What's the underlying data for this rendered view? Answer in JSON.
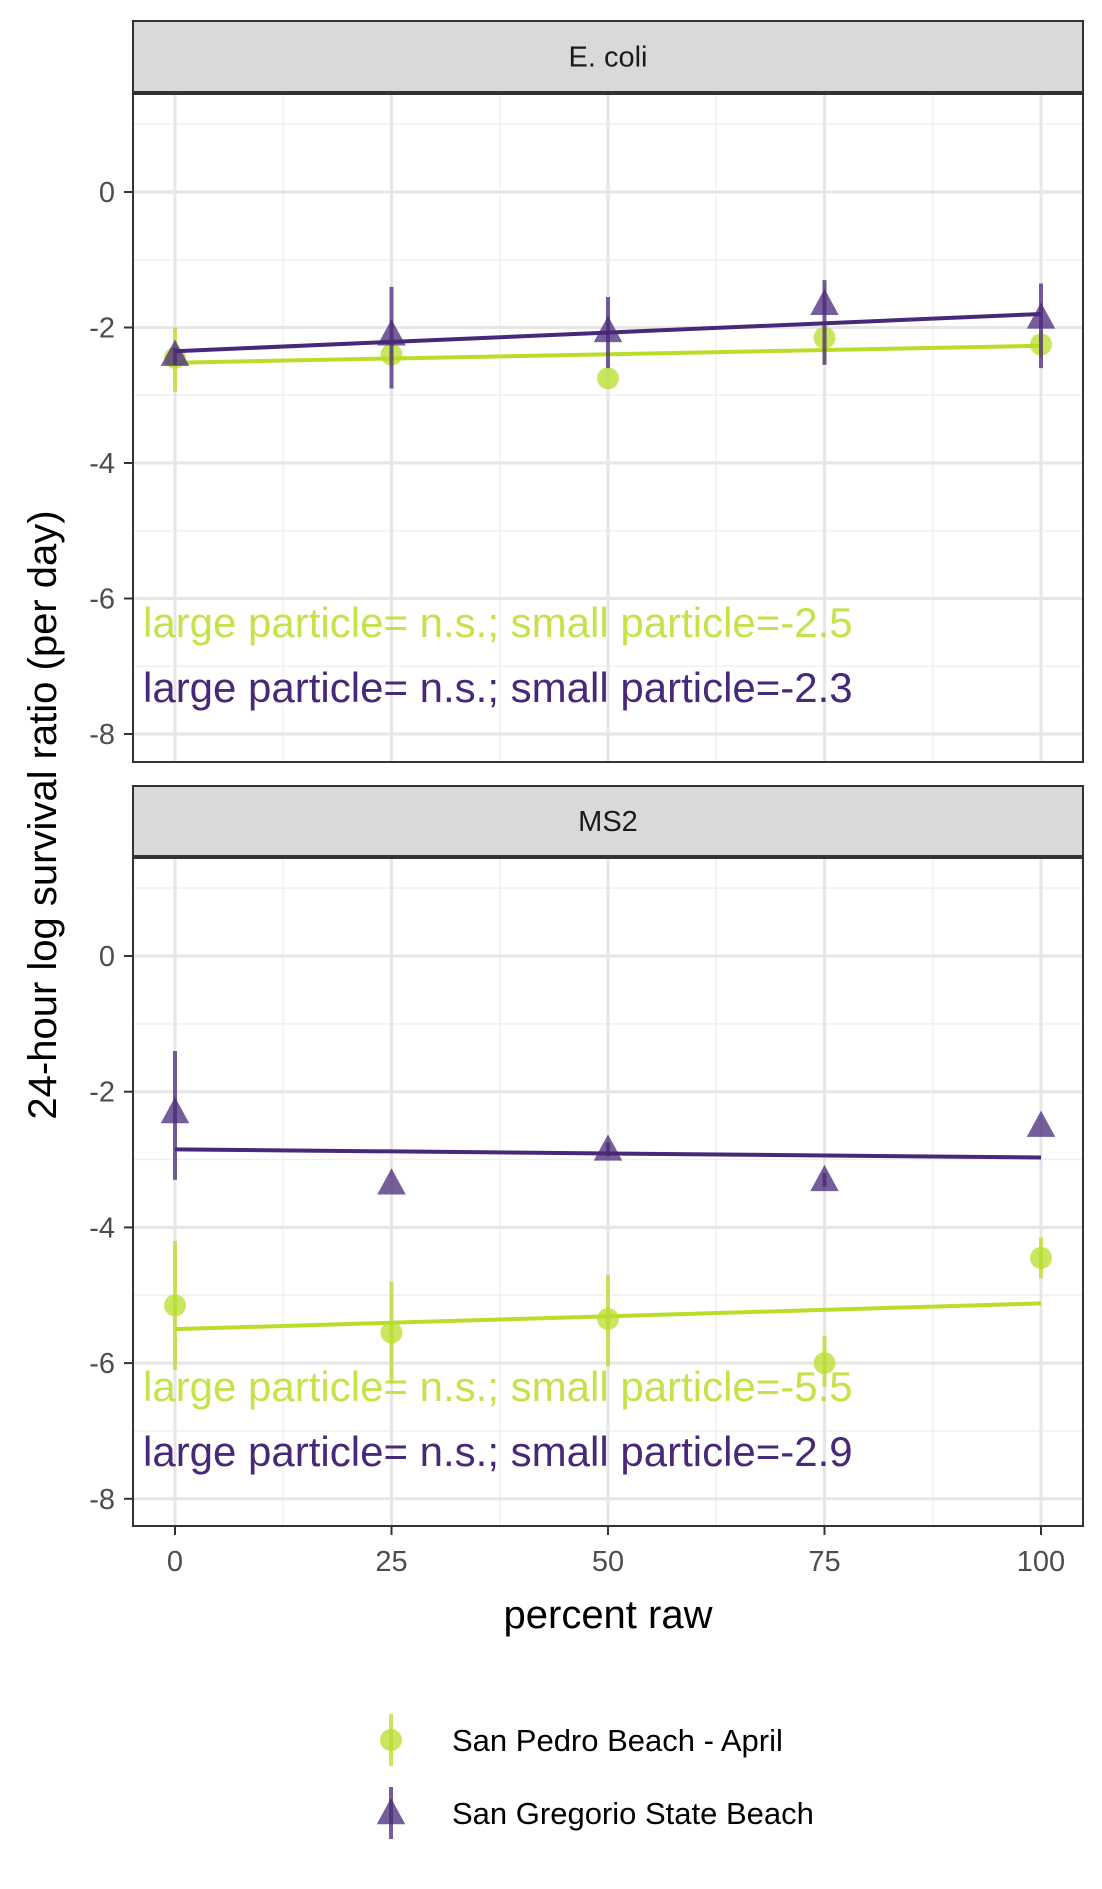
{
  "chart_data": {
    "type": "scatter",
    "xlabel": "percent raw",
    "ylabel": "24-hour log survival ratio (per day)",
    "x_ticks": [
      "0",
      "25",
      "50",
      "75",
      "100"
    ],
    "y_ticks": [
      "0",
      "-2",
      "-4",
      "-6",
      "-8"
    ],
    "xlim": [
      -5,
      105
    ],
    "ylim": [
      -8.5,
      1.4
    ],
    "grid": true,
    "legend_position": "bottom",
    "colors": {
      "San Pedro Beach - April": "#B8DE29",
      "San Gregorio State Beach": "#482878"
    },
    "legend": [
      {
        "name": "San Pedro Beach - April",
        "marker": "circle",
        "color": "#B8DE29"
      },
      {
        "name": "San Gregorio State Beach",
        "marker": "triangle",
        "color": "#482878"
      }
    ],
    "panels": [
      {
        "strip": "E. coli",
        "series": [
          {
            "name": "San Pedro Beach - April",
            "color": "#B8DE29",
            "marker": "circle",
            "x": [
              0,
              25,
              50,
              75,
              100
            ],
            "y": [
              -2.45,
              -2.4,
              -2.75,
              -2.15,
              -2.25
            ],
            "err_low": [
              -2.95,
              -2.5,
              -2.75,
              -2.55,
              -2.45
            ],
            "err_high": [
              -2.0,
              -2.3,
              -2.75,
              -1.9,
              -2.05
            ],
            "fit": {
              "x": [
                0,
                100
              ],
              "y": [
                -2.52,
                -2.27
              ]
            },
            "annotation": "large particle= n.s.; small particle=-2.5"
          },
          {
            "name": "San Gregorio State Beach",
            "color": "#482878",
            "marker": "triangle",
            "x": [
              0,
              25,
              50,
              75,
              100
            ],
            "y": [
              -2.4,
              -2.1,
              -2.05,
              -1.65,
              -1.85
            ],
            "err_low": [
              -2.55,
              -2.9,
              -2.6,
              -2.55,
              -2.6
            ],
            "err_high": [
              -2.3,
              -1.4,
              -1.55,
              -1.3,
              -1.35
            ],
            "fit": {
              "x": [
                0,
                100
              ],
              "y": [
                -2.35,
                -1.8
              ]
            },
            "annotation": "large particle= n.s.; small particle=-2.3"
          }
        ]
      },
      {
        "strip": "MS2",
        "series": [
          {
            "name": "San Pedro Beach - April",
            "color": "#B8DE29",
            "marker": "circle",
            "x": [
              0,
              25,
              50,
              75,
              100
            ],
            "y": [
              -5.15,
              -5.55,
              -5.35,
              -6.0,
              -4.45
            ],
            "err_low": [
              -6.1,
              -6.3,
              -6.05,
              -6.35,
              -4.75
            ],
            "err_high": [
              -4.2,
              -4.8,
              -4.7,
              -5.6,
              -4.15
            ],
            "fit": {
              "x": [
                0,
                100
              ],
              "y": [
                -5.5,
                -5.12
              ]
            },
            "annotation": "large particle= n.s.; small particle=-5.5"
          },
          {
            "name": "San Gregorio State Beach",
            "color": "#482878",
            "marker": "triangle",
            "x": [
              0,
              25,
              50,
              75,
              100
            ],
            "y": [
              -2.3,
              -3.35,
              -2.85,
              -3.3,
              -2.5
            ],
            "err_low": [
              -3.3,
              -3.35,
              -2.95,
              -3.4,
              -2.5
            ],
            "err_high": [
              -1.4,
              -3.35,
              -2.75,
              -3.2,
              -2.5
            ],
            "fit": {
              "x": [
                0,
                100
              ],
              "y": [
                -2.85,
                -2.97
              ]
            },
            "annotation": "large particle= n.s.; small particle=-2.9"
          }
        ]
      }
    ]
  }
}
